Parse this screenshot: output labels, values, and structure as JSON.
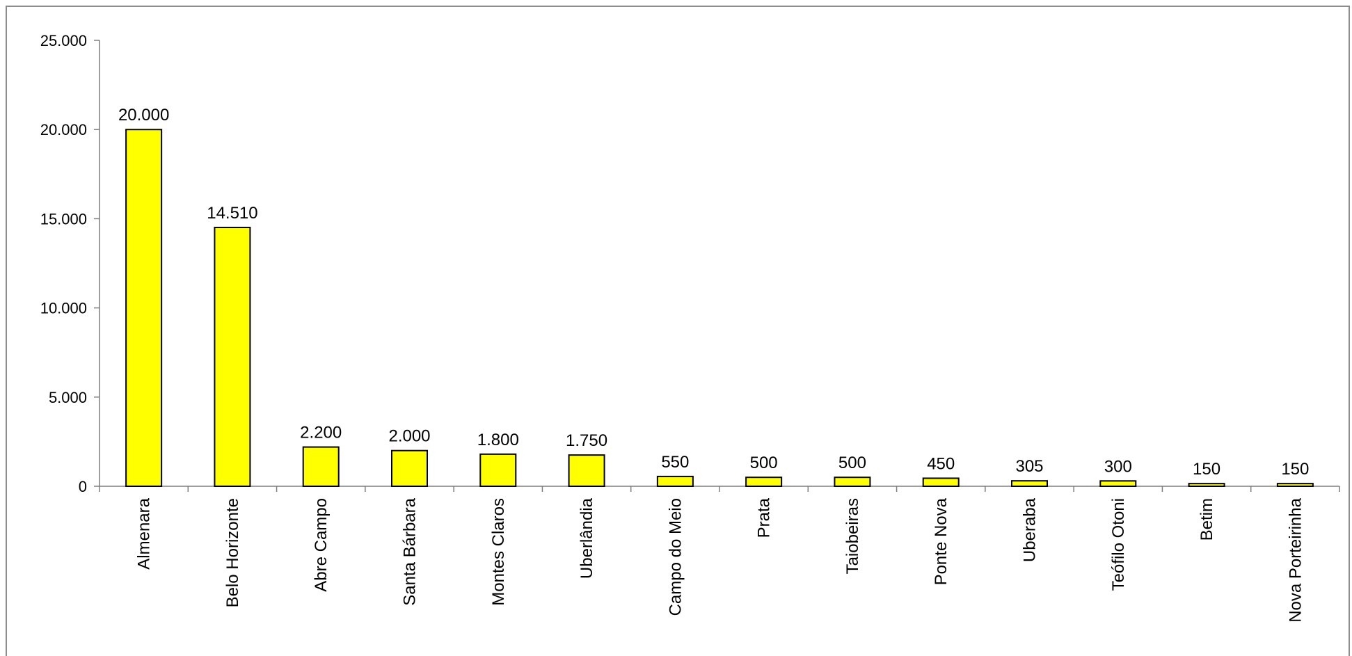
{
  "chart_data": {
    "type": "bar",
    "categories": [
      "Almenara",
      "Belo Horizonte",
      "Abre Campo",
      "Santa Bárbara",
      "Montes Claros",
      "Uberlândia",
      "Campo do Meio",
      "Prata",
      "Taiobeiras",
      "Ponte Nova",
      "Uberaba",
      "Teófilo Otoni",
      "Betim",
      "Nova Porteirinha"
    ],
    "values": [
      20000,
      14510,
      2200,
      2000,
      1800,
      1750,
      550,
      500,
      500,
      450,
      305,
      300,
      150,
      150
    ],
    "value_labels": [
      "20.000",
      "14.510",
      "2.200",
      "2.000",
      "1.800",
      "1.750",
      "550",
      "500",
      "500",
      "450",
      "305",
      "300",
      "150",
      "150"
    ],
    "ylim": [
      0,
      25000
    ],
    "yticks": [
      0,
      5000,
      10000,
      15000,
      20000,
      25000
    ],
    "ytick_labels": [
      "0",
      "5.000",
      "10.000",
      "15.000",
      "20.000",
      "25.000"
    ],
    "bar_color": "#ffff00",
    "grid": false,
    "legend": "none"
  }
}
